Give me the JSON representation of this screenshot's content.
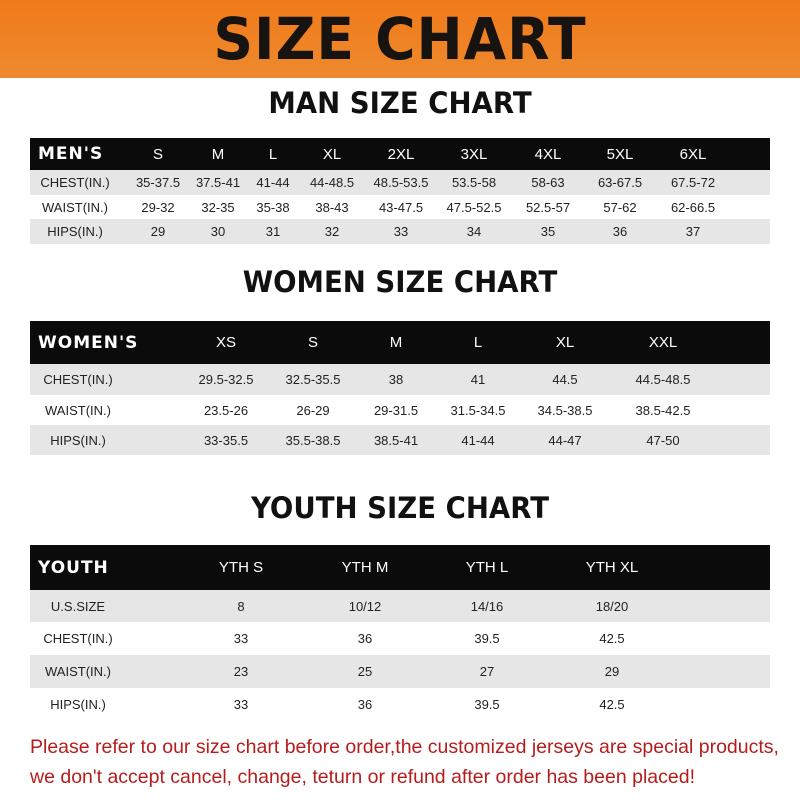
{
  "banner": {
    "title": "SIZE CHART",
    "color": "#f07a1a"
  },
  "men": {
    "title": "MAN SIZE CHART",
    "header": [
      "MEN'S",
      "S",
      "M",
      "L",
      "XL",
      "2XL",
      "3XL",
      "4XL",
      "5XL",
      "6XL"
    ],
    "rows": [
      [
        "CHEST(IN.)",
        "35-37.5",
        "37.5-41",
        "41-44",
        "44-48.5",
        "48.5-53.5",
        "53.5-58",
        "58-63",
        "63-67.5",
        "67.5-72"
      ],
      [
        "WAIST(IN.)",
        "29-32",
        "32-35",
        "35-38",
        "38-43",
        "43-47.5",
        "47.5-52.5",
        "52.5-57",
        "57-62",
        "62-66.5"
      ],
      [
        "HIPS(IN.)",
        "29",
        "30",
        "31",
        "32",
        "33",
        "34",
        "35",
        "36",
        "37"
      ]
    ]
  },
  "women": {
    "title": "WOMEN SIZE CHART",
    "header": [
      "WOMEN'S",
      "XS",
      "S",
      "M",
      "L",
      "XL",
      "XXL"
    ],
    "rows": [
      [
        "CHEST(IN.)",
        "29.5-32.5",
        "32.5-35.5",
        "38",
        "41",
        "44.5",
        "44.5-48.5"
      ],
      [
        "WAIST(IN.)",
        "23.5-26",
        "26-29",
        "29-31.5",
        "31.5-34.5",
        "34.5-38.5",
        "38.5-42.5"
      ],
      [
        "HIPS(IN.)",
        "33-35.5",
        "35.5-38.5",
        "38.5-41",
        "41-44",
        "44-47",
        "47-50"
      ]
    ]
  },
  "youth": {
    "title": "YOUTH SIZE CHART",
    "header": [
      "YOUTH",
      "YTH S",
      "YTH M",
      "YTH L",
      "YTH XL"
    ],
    "rows": [
      [
        "U.S.SIZE",
        "8",
        "10/12",
        "14/16",
        "18/20"
      ],
      [
        "CHEST(IN.)",
        "33",
        "36",
        "39.5",
        "42.5"
      ],
      [
        "WAIST(IN.)",
        "23",
        "25",
        "27",
        "29"
      ],
      [
        "HIPS(IN.)",
        "33",
        "36",
        "39.5",
        "42.5"
      ]
    ]
  },
  "footer": {
    "line1": "Please refer to our size chart before order,the customized jerseys are special products,",
    "line2": "we don't accept cancel, change, teturn or refund after order has been placed!",
    "color": "#b51d1d"
  }
}
